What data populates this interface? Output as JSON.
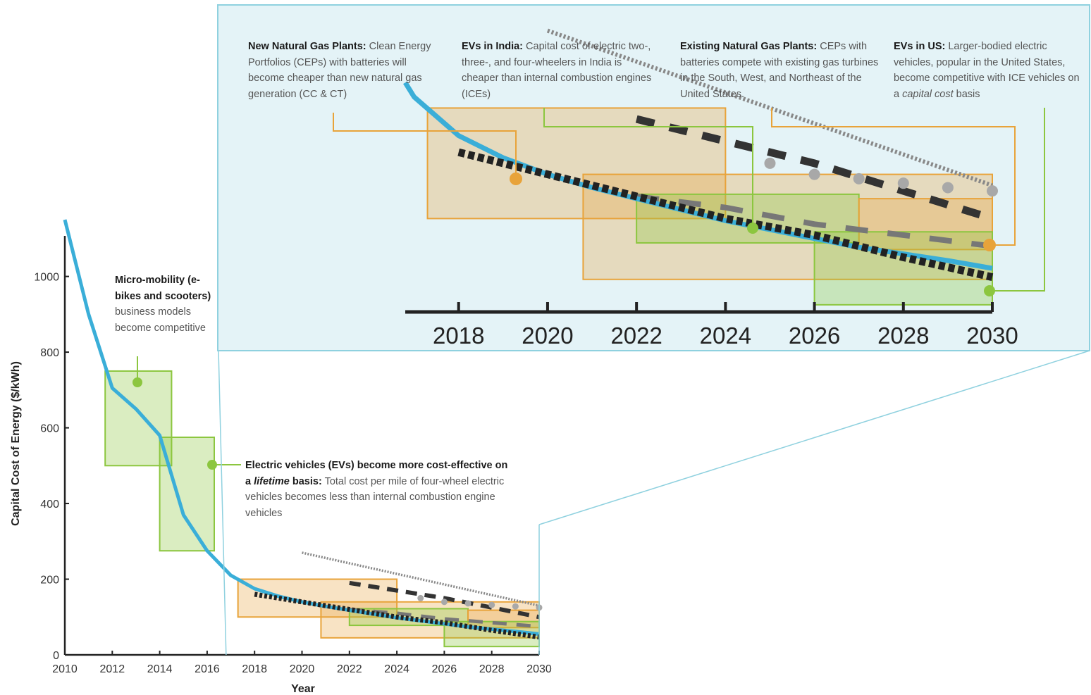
{
  "chart_data": {
    "type": "line",
    "ylabel": "Capital Cost of Energy ($/kWh)",
    "xlabel": "Year",
    "xlim": [
      2010,
      2030
    ],
    "ylim": [
      0,
      1150
    ],
    "x_ticks": [
      "2010",
      "2012",
      "2014",
      "2016",
      "2018",
      "2020",
      "2022",
      "2024",
      "2026",
      "2028",
      "2030"
    ],
    "y_ticks": [
      "0",
      "200",
      "400",
      "600",
      "800",
      "1000"
    ],
    "grid": false,
    "zoom_xlim": [
      2016.8,
      2030
    ],
    "zoom_x_ticks": [
      "2018",
      "2020",
      "2022",
      "2024",
      "2026",
      "2028",
      "2030"
    ],
    "series": [
      {
        "style": "solid",
        "color": "#3aaed8",
        "x": [
          2010,
          2011,
          2012,
          2013,
          2014,
          2015,
          2016,
          2017,
          2018,
          2019,
          2020,
          2021,
          2022,
          2023,
          2024,
          2025,
          2026,
          2027,
          2028,
          2029,
          2030
        ],
        "y": [
          1150,
          900,
          705,
          650,
          580,
          370,
          275,
          210,
          175,
          155,
          140,
          128,
          118,
          108,
          98,
          90,
          82,
          74,
          68,
          62,
          55
        ]
      },
      {
        "style": "dense-dotted",
        "color": "#222222",
        "x": [
          2018,
          2020,
          2022,
          2024,
          2026,
          2028,
          2030
        ],
        "y": [
          160,
          140,
          120,
          100,
          85,
          65,
          47
        ]
      },
      {
        "style": "dashed",
        "color": "#333333",
        "x": [
          2022,
          2024,
          2026,
          2028,
          2030
        ],
        "y": [
          190,
          170,
          150,
          125,
          100
        ]
      },
      {
        "style": "gray-dashed",
        "color": "#777777",
        "x": [
          2022,
          2024,
          2026,
          2028,
          2030
        ],
        "y": [
          120,
          110,
          95,
          85,
          75
        ]
      },
      {
        "style": "fine-dotted",
        "color": "#888888",
        "x": [
          2020,
          2030
        ],
        "y": [
          270,
          130
        ]
      },
      {
        "style": "gray-circles",
        "color": "#a8a8a8",
        "x": [
          2025,
          2026,
          2027,
          2028,
          2029,
          2030
        ],
        "y": [
          150,
          140,
          136,
          132,
          128,
          125
        ]
      }
    ],
    "boxes": [
      {
        "kind": "green",
        "x": [
          2011.7,
          2014.5
        ],
        "y": [
          500,
          750
        ]
      },
      {
        "kind": "green",
        "x": [
          2014.0,
          2016.3
        ],
        "y": [
          275,
          575
        ]
      },
      {
        "kind": "orange",
        "x": [
          2017.3,
          2024.0
        ],
        "y": [
          100,
          200
        ]
      },
      {
        "kind": "orange",
        "x": [
          2020.8,
          2030.0
        ],
        "y": [
          45,
          140
        ]
      },
      {
        "kind": "green",
        "x": [
          2022.0,
          2027.0
        ],
        "y": [
          78,
          122
        ]
      },
      {
        "kind": "orange",
        "x": [
          2027.0,
          2030.0
        ],
        "y": [
          72,
          118
        ]
      },
      {
        "kind": "green",
        "x": [
          2026.0,
          2030.0
        ],
        "y": [
          22,
          88
        ]
      }
    ],
    "colors": {
      "blue": "#3aaed8",
      "orange": "#e8a33a",
      "green": "#8cc63f",
      "zoom_bg": "#e4f3f7",
      "zoom_border": "#8fd1df"
    }
  },
  "annotations": {
    "micro": {
      "bold": "Micro-mobility (e-bikes and scooters)",
      "text": " business models become competitive"
    },
    "ev_lifetime": {
      "bold1": "Electric vehicles (EVs) become more cost-effective on a ",
      "italic": "lifetime",
      "bold2": " basis:",
      "text": " Total cost per mile of four-wheel electric vehicles becomes less than internal combustion engine vehicles"
    },
    "new_gas": {
      "bold": "New Natural Gas Plants:",
      "text": " Clean Energy Portfolios (CEPs) with batteries will become cheaper than new natural gas generation (CC & CT)"
    },
    "ev_india": {
      "bold": "EVs in India:",
      "text": " Capital cost of electric two-, three-, and four-wheelers in India is cheaper than internal combustion engines (ICEs)"
    },
    "existing_gas": {
      "bold": "Existing Natural Gas Plants:",
      "text": " CEPs with batteries compete with existing gas turbines in the South, West, and Northeast of the United States."
    },
    "ev_us": {
      "bold": "EVs in US:",
      "text1": " Larger-bodied electric vehicles, popular in the United States, become competitive with ICE vehicles on a ",
      "italic": "capital cost",
      "text2": " basis"
    }
  }
}
